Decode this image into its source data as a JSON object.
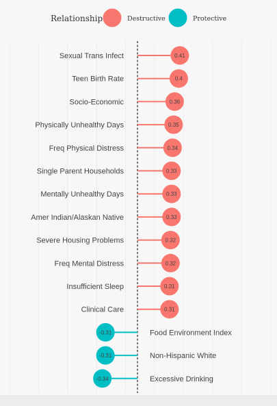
{
  "chart_data": {
    "type": "lollipop",
    "orientation": "horizontal",
    "legend": {
      "title": "Relationship",
      "placement": "top",
      "entries": [
        {
          "label": "Destructive",
          "color": "#f8766d"
        },
        {
          "label": "Protective",
          "color": "#00bfc4"
        }
      ]
    },
    "xlim": [
      -0.5,
      0.5
    ],
    "zero_line": "dashed",
    "grid": true,
    "rows": [
      {
        "label": "Sexual Trans Infect",
        "value": 0.41,
        "value_label": "0.41",
        "relationship": "Destructive"
      },
      {
        "label": "Teen Birth Rate",
        "value": 0.4,
        "value_label": "0.4",
        "relationship": "Destructive"
      },
      {
        "label": "Socio-Economic",
        "value": 0.36,
        "value_label": "0.36",
        "relationship": "Destructive"
      },
      {
        "label": "Physically Unhealthy Days",
        "value": 0.35,
        "value_label": "0.35",
        "relationship": "Destructive"
      },
      {
        "label": "Freq Physical Distress",
        "value": 0.34,
        "value_label": "0.34",
        "relationship": "Destructive"
      },
      {
        "label": "Single Parent Households",
        "value": 0.33,
        "value_label": "0.33",
        "relationship": "Destructive"
      },
      {
        "label": "Mentally Unhealthy Days",
        "value": 0.33,
        "value_label": "0.33",
        "relationship": "Destructive"
      },
      {
        "label": "Amer Indian/Alaskan Native",
        "value": 0.33,
        "value_label": "0.33",
        "relationship": "Destructive"
      },
      {
        "label": "Severe Housing Problems",
        "value": 0.32,
        "value_label": "0.32",
        "relationship": "Destructive"
      },
      {
        "label": "Freq Mental Distress",
        "value": 0.32,
        "value_label": "0.32",
        "relationship": "Destructive"
      },
      {
        "label": "Insufficient Sleep",
        "value": 0.31,
        "value_label": "0.31",
        "relationship": "Destructive"
      },
      {
        "label": "Clinical Care",
        "value": 0.31,
        "value_label": "0.31",
        "relationship": "Destructive"
      },
      {
        "label": "Food Environment Index",
        "value": -0.31,
        "value_label": "-0.31",
        "relationship": "Protective"
      },
      {
        "label": "Non-Hispanic White",
        "value": -0.31,
        "value_label": "-0.31",
        "relationship": "Protective"
      },
      {
        "label": "Excessive Drinking",
        "value": -0.34,
        "value_label": "-0.34",
        "relationship": "Protective"
      }
    ]
  }
}
